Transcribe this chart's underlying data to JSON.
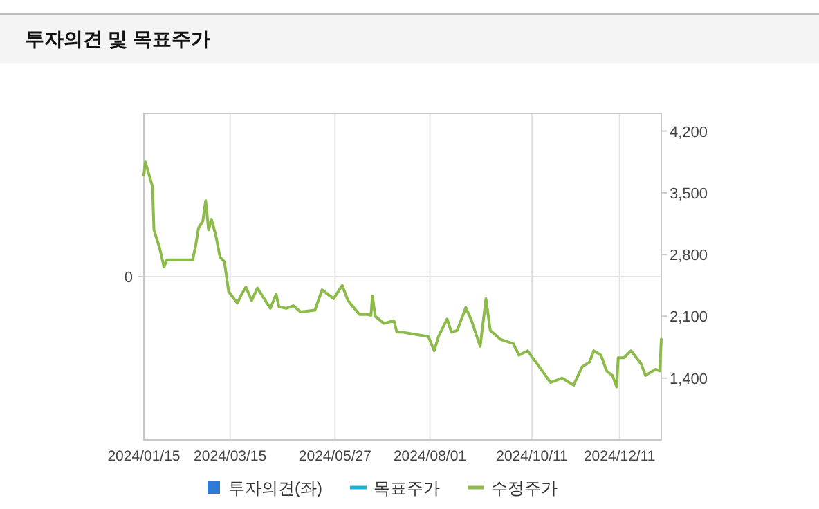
{
  "chart_data": {
    "type": "line",
    "title": "투자의견 및 목표주가",
    "xlim": [
      "2024-01-15",
      "2025-01-09"
    ],
    "xticks": [
      {
        "value": "2024-01-15",
        "label": "2024/01/15"
      },
      {
        "value": "2024-03-15",
        "label": "2024/03/15"
      },
      {
        "value": "2024-05-27",
        "label": "2024/05/27"
      },
      {
        "value": "2024-08-01",
        "label": "2024/08/01"
      },
      {
        "value": "2024-10-11",
        "label": "2024/10/11"
      },
      {
        "value": "2024-12-11",
        "label": "2024/12/11"
      }
    ],
    "annotations": [
      "0"
    ],
    "y2lim": [
      700,
      4400
    ],
    "y2ticks": [
      {
        "value": 1400,
        "label": "1,400"
      },
      {
        "value": 2100,
        "label": "2,100"
      },
      {
        "value": 2800,
        "label": "2,800"
      },
      {
        "value": 3500,
        "label": "3,500"
      },
      {
        "value": 4200,
        "label": "4,200"
      }
    ],
    "grid": true,
    "legend": "bottom",
    "line_style": "solid",
    "marker": "none",
    "series": [
      {
        "name": "투자의견(좌)",
        "type": "bar",
        "color": "#2e7bd6"
      },
      {
        "name": "목표주가",
        "type": "line",
        "color": "#1ab0d8",
        "axis": "y2"
      },
      {
        "name": "수정주가",
        "color": "#8cbb4a",
        "axis": "y2",
        "x": [
          "2024-01-15",
          "2024-01-16",
          "2024-01-21",
          "2024-01-22",
          "2024-01-26",
          "2024-01-29",
          "2024-01-31",
          "2024-02-18",
          "2024-02-20",
          "2024-02-22",
          "2024-02-25",
          "2024-02-27",
          "2024-02-29",
          "2024-03-02",
          "2024-03-05",
          "2024-03-08",
          "2024-03-11",
          "2024-03-14",
          "2024-03-20",
          "2024-03-23",
          "2024-03-26",
          "2024-03-30",
          "2024-04-03",
          "2024-04-12",
          "2024-04-16",
          "2024-04-18",
          "2024-04-23",
          "2024-04-28",
          "2024-05-03",
          "2024-05-13",
          "2024-05-18",
          "2024-05-26",
          "2024-06-01",
          "2024-06-05",
          "2024-06-13",
          "2024-06-19",
          "2024-06-21",
          "2024-06-22",
          "2024-06-24",
          "2024-06-30",
          "2024-07-07",
          "2024-07-09",
          "2024-07-13",
          "2024-07-24",
          "2024-07-31",
          "2024-08-04",
          "2024-08-07",
          "2024-08-13",
          "2024-08-16",
          "2024-08-20",
          "2024-08-26",
          "2024-08-30",
          "2024-09-05",
          "2024-09-09",
          "2024-09-12",
          "2024-09-19",
          "2024-09-28",
          "2024-10-02",
          "2024-10-08",
          "2024-10-16",
          "2024-10-24",
          "2024-11-01",
          "2024-11-09",
          "2024-11-15",
          "2024-11-20",
          "2024-11-23",
          "2024-11-28",
          "2024-12-02",
          "2024-12-06",
          "2024-12-09",
          "2024-12-10",
          "2024-12-14",
          "2024-12-19",
          "2024-12-26",
          "2024-12-29",
          "2025-01-05",
          "2025-01-08",
          "2025-01-09"
        ],
        "values": [
          3700,
          3850,
          3570,
          3080,
          2870,
          2660,
          2740,
          2740,
          2900,
          3100,
          3180,
          3410,
          3080,
          3200,
          3020,
          2770,
          2720,
          2380,
          2250,
          2350,
          2430,
          2280,
          2420,
          2190,
          2350,
          2210,
          2190,
          2220,
          2150,
          2170,
          2400,
          2300,
          2450,
          2280,
          2120,
          2120,
          2110,
          2330,
          2100,
          2020,
          2050,
          1920,
          1920,
          1890,
          1870,
          1710,
          1870,
          2070,
          1920,
          1940,
          2200,
          2050,
          1760,
          2300,
          1940,
          1840,
          1790,
          1660,
          1710,
          1530,
          1350,
          1400,
          1320,
          1530,
          1580,
          1710,
          1660,
          1480,
          1430,
          1300,
          1630,
          1630,
          1710,
          1560,
          1430,
          1500,
          1480,
          1840
        ]
      }
    ]
  }
}
